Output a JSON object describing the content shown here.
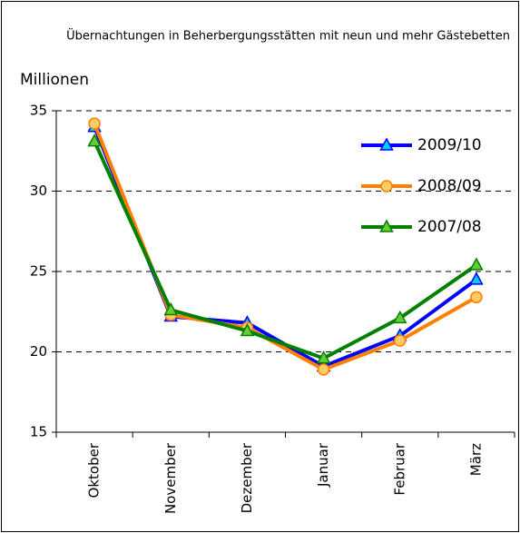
{
  "chart_data": {
    "type": "line",
    "title": "Übernachtungen in Beherbergungsstätten mit neun und mehr Gästebetten",
    "y_label": "Millionen",
    "categories": [
      "Oktober",
      "November",
      "Dezember",
      "Januar",
      "Februar",
      "März"
    ],
    "series": [
      {
        "name": "2009/10",
        "color": "#0000ff",
        "marker": "triangle",
        "marker_fill": "#00ccff",
        "values": [
          34.0,
          22.2,
          21.8,
          19.1,
          21.0,
          24.5
        ]
      },
      {
        "name": "2008/09",
        "color": "#ff7f00",
        "marker": "circle",
        "marker_fill": "#ffcc66",
        "values": [
          34.2,
          22.3,
          21.5,
          18.9,
          20.7,
          23.4
        ]
      },
      {
        "name": "2007/08",
        "color": "#008000",
        "marker": "triangle",
        "marker_fill": "#66cc33",
        "values": [
          33.1,
          22.6,
          21.3,
          19.6,
          22.1,
          25.4
        ]
      }
    ],
    "ylim": [
      15,
      35
    ],
    "yticks": [
      15,
      20,
      25,
      30,
      35
    ],
    "grid": true,
    "legend": "upper right"
  }
}
